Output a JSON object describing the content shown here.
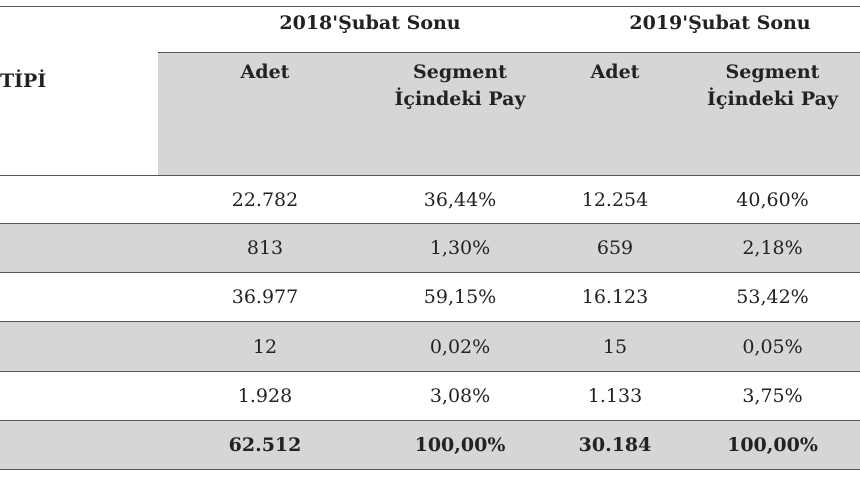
{
  "table": {
    "row_header_label": "TİPİ",
    "groups": [
      {
        "label": "2018'Şubat Sonu"
      },
      {
        "label": "2019'Şubat Sonu"
      }
    ],
    "subheaders": [
      "Adet",
      "Segment İçindeki Pay",
      "Adet",
      "Segment İçindeki Pay"
    ],
    "rows": [
      {
        "cells": [
          "22.782",
          "36,44%",
          "12.254",
          "40,60%"
        ],
        "shaded": false
      },
      {
        "cells": [
          "813",
          "1,30%",
          "659",
          "2,18%"
        ],
        "shaded": true
      },
      {
        "cells": [
          "36.977",
          "59,15%",
          "16.123",
          "53,42%"
        ],
        "shaded": false
      },
      {
        "cells": [
          "12",
          "0,02%",
          "15",
          "0,05%"
        ],
        "shaded": true
      },
      {
        "cells": [
          "1.928",
          "3,08%",
          "1.133",
          "3,75%"
        ],
        "shaded": false
      },
      {
        "cells": [
          "62.512",
          "100,00%",
          "30.184",
          "100,00%"
        ],
        "shaded": true,
        "bold": true
      }
    ]
  }
}
